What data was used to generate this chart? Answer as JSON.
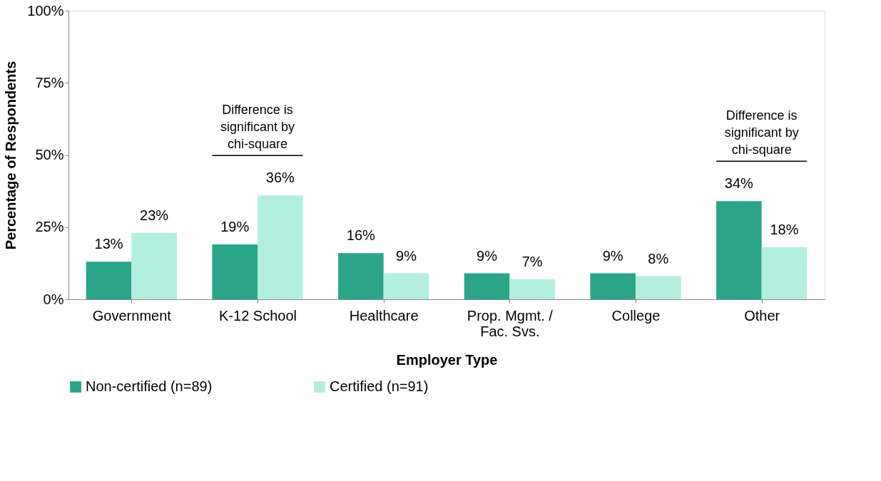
{
  "chart_data": {
    "type": "bar",
    "xlabel": "Employer Type",
    "ylabel": "Percentage of Respondents",
    "categories": [
      "Government",
      "K-12 School",
      "Healthcare",
      "Prop. Mgmt. /\nFac. Svs.",
      "College",
      "Other"
    ],
    "series": [
      {
        "name": "Non-certified (n=89)",
        "color": "#2aa58a",
        "values": [
          13,
          19,
          16,
          9,
          9,
          34
        ],
        "value_labels": [
          "13%",
          "19%",
          "16%",
          "9%",
          "9%",
          "34%"
        ]
      },
      {
        "name": "Certified (n=91)",
        "color": "#b3eedf",
        "values": [
          23,
          36,
          9,
          7,
          8,
          18
        ],
        "value_labels": [
          "23%",
          "36%",
          "9%",
          "7%",
          "8%",
          "18%"
        ]
      }
    ],
    "ylim": [
      0,
      100
    ],
    "yticks": [
      {
        "value": 0,
        "label": "0%"
      },
      {
        "value": 25,
        "label": "25%"
      },
      {
        "value": 50,
        "label": "50%"
      },
      {
        "value": 75,
        "label": "75%"
      },
      {
        "value": 100,
        "label": "100%"
      }
    ],
    "annotations": [
      "Difference is\nsignificant by\nchi-square",
      "Difference is\nsignificant by\nchi-square"
    ],
    "grid": false,
    "legend": "bottom"
  }
}
